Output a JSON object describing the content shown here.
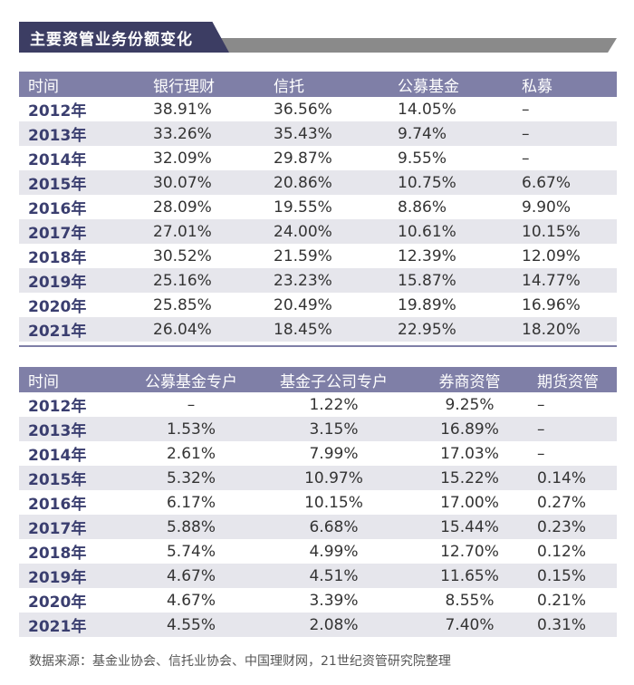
{
  "title": "主要资管业务份额变化",
  "table1": {
    "headers": [
      "时间",
      "银行理财",
      "信托",
      "公募基金",
      "私募"
    ],
    "rows": [
      [
        "2012年",
        "38.91%",
        "36.56%",
        "14.05%",
        "–"
      ],
      [
        "2013年",
        "33.26%",
        "35.43%",
        "9.74%",
        "–"
      ],
      [
        "2014年",
        "32.09%",
        "29.87%",
        "9.55%",
        "–"
      ],
      [
        "2015年",
        "30.07%",
        "20.86%",
        "10.75%",
        "6.67%"
      ],
      [
        "2016年",
        "28.09%",
        "19.55%",
        "8.86%",
        "9.90%"
      ],
      [
        "2017年",
        "27.01%",
        "24.00%",
        "10.61%",
        "10.15%"
      ],
      [
        "2018年",
        "30.52%",
        "21.59%",
        "12.39%",
        "12.09%"
      ],
      [
        "2019年",
        "25.16%",
        "23.23%",
        "15.87%",
        "14.77%"
      ],
      [
        "2020年",
        "25.85%",
        "20.49%",
        "19.89%",
        "16.96%"
      ],
      [
        "2021年",
        "26.04%",
        "18.45%",
        "22.95%",
        "18.20%"
      ]
    ]
  },
  "table2": {
    "headers": [
      "时间",
      "公募基金专户",
      "基金子公司专户",
      "券商资管",
      "期货资管"
    ],
    "rows": [
      [
        "2012年",
        "–",
        "1.22%",
        "9.25%",
        "–"
      ],
      [
        "2013年",
        "1.53%",
        "3.15%",
        "16.89%",
        "–"
      ],
      [
        "2014年",
        "2.61%",
        "7.99%",
        "17.03%",
        "–"
      ],
      [
        "2015年",
        "5.32%",
        "10.97%",
        "15.22%",
        "0.14%"
      ],
      [
        "2016年",
        "6.17%",
        "10.15%",
        "17.00%",
        "0.27%"
      ],
      [
        "2017年",
        "5.88%",
        "6.68%",
        "15.44%",
        "0.23%"
      ],
      [
        "2018年",
        "5.74%",
        "4.99%",
        "12.70%",
        "0.12%"
      ],
      [
        "2019年",
        "4.67%",
        "4.51%",
        "11.65%",
        "0.15%"
      ],
      [
        "2020年",
        "4.67%",
        "3.39%",
        "8.55%",
        "0.21%"
      ],
      [
        "2021年",
        "4.55%",
        "2.08%",
        "7.40%",
        "0.31%"
      ]
    ]
  },
  "source": "数据来源：基金业协会、信托业协会、中国理财网，21世纪资管研究院整理",
  "colors": {
    "header_bg": "#7f7fa7",
    "title_bg": "#3c3d63",
    "stripe": "#e6e6ec",
    "year_text": "#3a3e6f"
  }
}
